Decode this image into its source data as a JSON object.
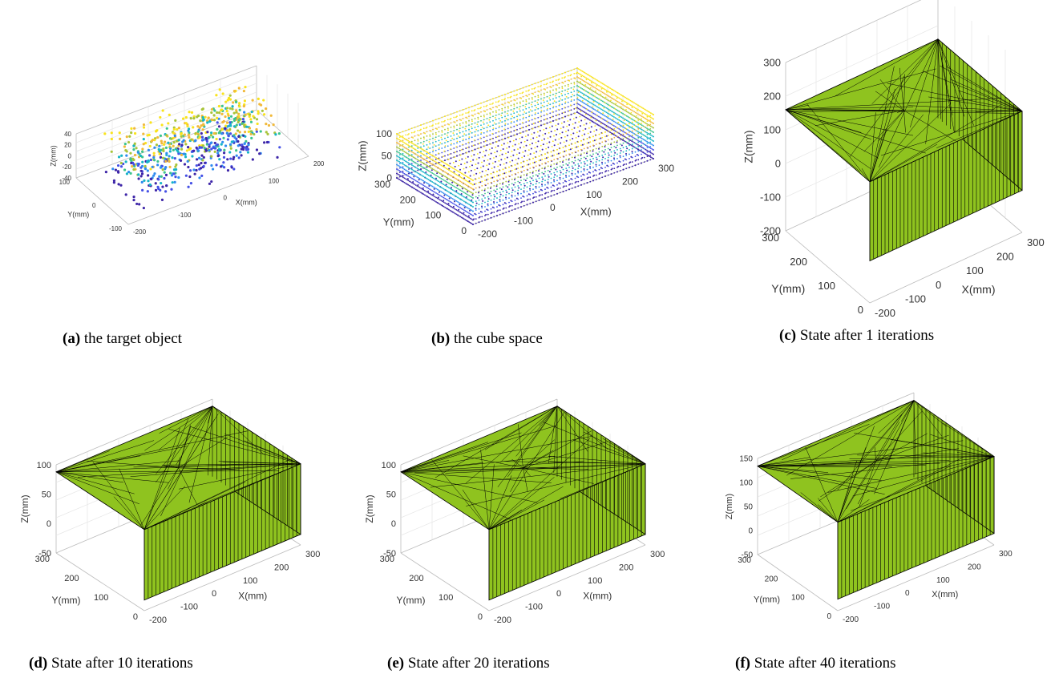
{
  "figure": {
    "panels": [
      {
        "label": "(a)",
        "caption": "the target object",
        "axes": {
          "x_label": "X(mm)",
          "y_label": "Y(mm)",
          "z_label": "Z(mm)",
          "x_ticks": [
            -200,
            -100,
            0,
            100,
            200
          ],
          "y_ticks": [
            -100,
            0,
            100
          ],
          "z_ticks": [
            40,
            20,
            0,
            -20,
            -40
          ]
        }
      },
      {
        "label": "(b)",
        "caption": "the cube space",
        "axes": {
          "x_label": "X(mm)",
          "y_label": "Y(mm)",
          "z_label": "Z(mm)",
          "x_ticks": [
            -200,
            -100,
            0,
            100,
            200,
            300
          ],
          "y_ticks": [
            0,
            100,
            200,
            300
          ],
          "z_ticks": [
            100,
            50,
            0
          ]
        }
      },
      {
        "label": "(c)",
        "caption": "State after 1 iterations",
        "axes": {
          "x_label": "X(mm)",
          "y_label": "Y(mm)",
          "z_label": "Z(mm)",
          "x_ticks": [
            -200,
            -100,
            0,
            100,
            200,
            300
          ],
          "y_ticks": [
            0,
            100,
            200,
            300
          ],
          "z_ticks": [
            300,
            200,
            100,
            0,
            -100,
            -200
          ]
        }
      },
      {
        "label": "(d)",
        "caption": "State after 10 iterations",
        "axes": {
          "x_label": "X(mm)",
          "y_label": "Y(mm)",
          "z_label": "Z(mm)",
          "x_ticks": [
            -200,
            -100,
            0,
            100,
            200,
            300
          ],
          "y_ticks": [
            0,
            100,
            200,
            300
          ],
          "z_ticks": [
            100,
            50,
            0,
            -50
          ]
        }
      },
      {
        "label": "(e)",
        "caption": "State after 20 iterations",
        "axes": {
          "x_label": "X(mm)",
          "y_label": "Y(mm)",
          "z_label": "Z(mm)",
          "x_ticks": [
            -200,
            -100,
            0,
            100,
            200,
            300
          ],
          "y_ticks": [
            0,
            100,
            200,
            300
          ],
          "z_ticks": [
            100,
            50,
            0,
            -50
          ]
        }
      },
      {
        "label": "(f)",
        "caption": "State after 40 iterations",
        "axes": {
          "x_label": "X(mm)",
          "y_label": "Y(mm)",
          "z_label": "Z(mm)",
          "x_ticks": [
            -200,
            -100,
            0,
            100,
            200,
            300
          ],
          "y_ticks": [
            0,
            100,
            200,
            300
          ],
          "z_ticks": [
            150,
            100,
            50,
            0,
            -50
          ]
        }
      }
    ]
  }
}
